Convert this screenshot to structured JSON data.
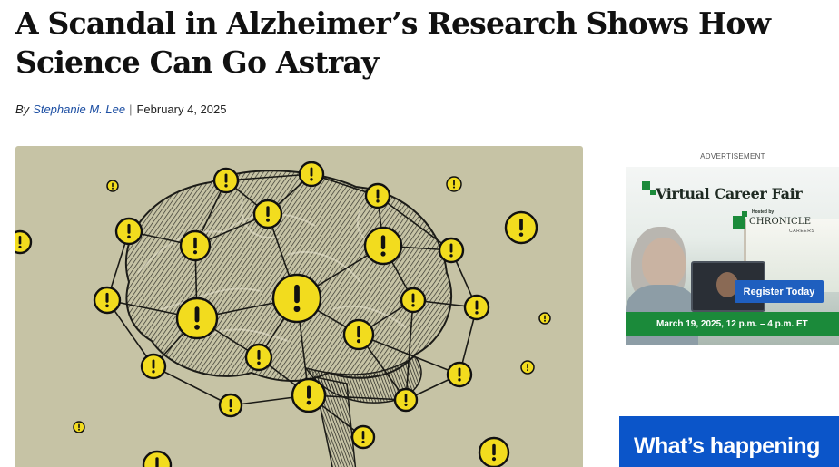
{
  "article": {
    "headline": "A Scandal in Alzheimer’s Research Shows How Science Can Go Astray",
    "byline_prefix": "By",
    "author": "Stephanie M. Lee",
    "separator": "|",
    "date": "February 4, 2025"
  },
  "hero_image": {
    "icon": "brain-network-exclamation-illustration",
    "node_color": "#f2dc1e",
    "background_color": "#c6c3a5"
  },
  "advertisement": {
    "label": "ADVERTISEMENT",
    "title": "Virtual Career Fair",
    "hosted_by": "Hosted by",
    "sponsor": "CHRONICLE",
    "sponsor_sub": "CAREERS",
    "cta": "Register Today",
    "event_date": "March 19, 2025, 12 p.m. – 4 p.m. ET",
    "accent_color": "#1b8a3a",
    "cta_color": "#1f5fbf"
  },
  "sidebar": {
    "section_title": "What’s happening",
    "section_color": "#0b55c9"
  }
}
